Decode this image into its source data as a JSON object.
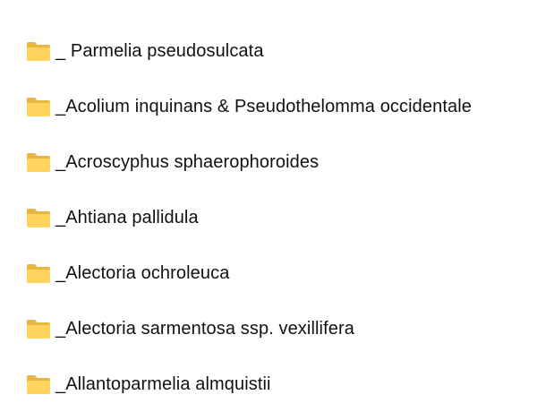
{
  "folders": [
    {
      "name": "_ Parmelia pseudosulcata",
      "icon": "folder-icon"
    },
    {
      "name": "_Acolium inquinans & Pseudothelomma occidentale",
      "icon": "folder-icon"
    },
    {
      "name": "_Acroscyphus sphaerophoroides",
      "icon": "folder-icon"
    },
    {
      "name": "_Ahtiana pallidula",
      "icon": "folder-icon"
    },
    {
      "name": "_Alectoria ochroleuca",
      "icon": "folder-icon"
    },
    {
      "name": "_Alectoria sarmentosa ssp. vexillifera",
      "icon": "folder-icon"
    },
    {
      "name": "_Allantoparmelia almquistii",
      "icon": "folder-icon"
    }
  ],
  "colors": {
    "folder_back": "#E8B73F",
    "folder_front": "#FFD45E"
  }
}
